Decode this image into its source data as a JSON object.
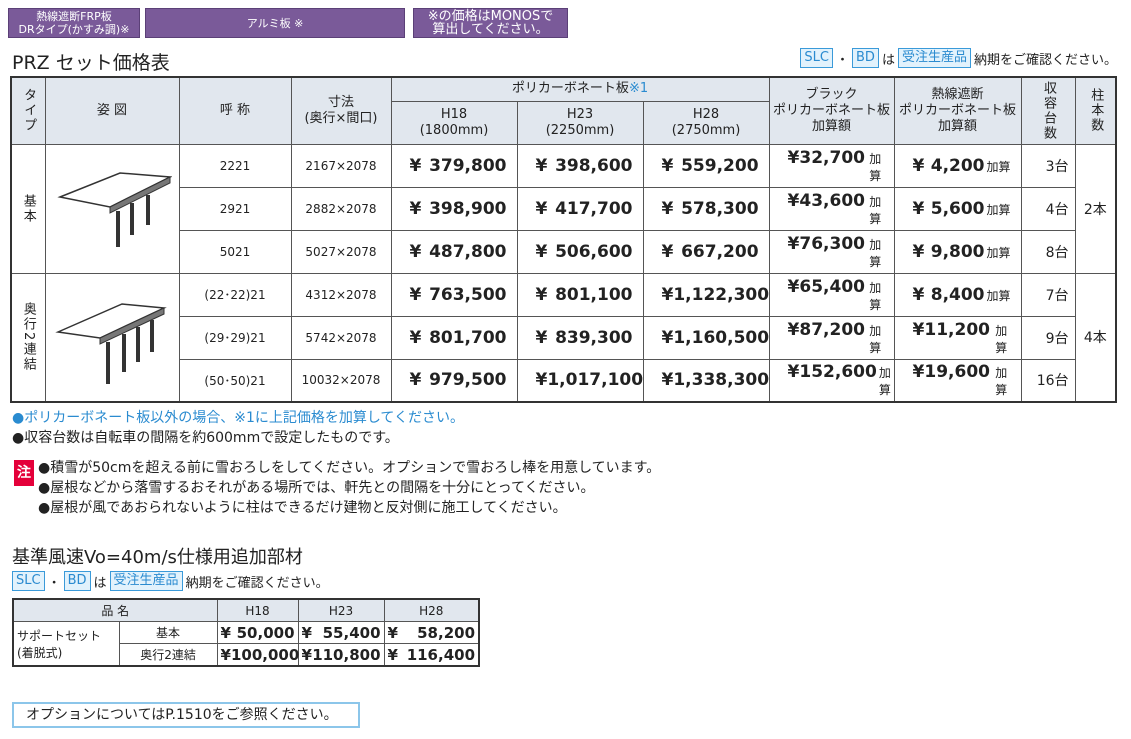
{
  "tabs": [
    [
      "熱線遮断FRP板",
      "DRタイプ(かすみ調)※"
    ],
    [
      "アルミ板 ※"
    ],
    [
      "※の価格はMONOSで",
      "算出してください。"
    ]
  ],
  "title": "PRZ セット価格表",
  "notice": {
    "badge1": "SLC",
    "sep": "・",
    "badge2": "BD",
    "ha": "は",
    "badge3": "受注生産品",
    "text": "納期をご確認ください。"
  },
  "table": {
    "currency": "¥",
    "addon_suffix": "加算",
    "header": {
      "type": "タイプ",
      "figure": "姿 図",
      "name": "呼 称",
      "size": [
        "寸法",
        "(奥行×間口)"
      ],
      "poly": "ポリカーボネート板",
      "poly_mark": "※1",
      "h18": [
        "H18",
        "(1800mm)"
      ],
      "h23": [
        "H23",
        "(2250mm)"
      ],
      "h28": [
        "H28",
        "(2750mm)"
      ],
      "black": [
        "ブラック",
        "ポリカーボネート板",
        "加算額"
      ],
      "heat": [
        "熱線遮断",
        "ポリカーボネート板",
        "加算額"
      ],
      "count": "収容台数",
      "pillars": "柱本数"
    },
    "groups": [
      {
        "type": "基本",
        "pillars": "2本",
        "rows": [
          {
            "name": "2221",
            "size": "2167×2078",
            "h18": "379,800",
            "h23": "398,600",
            "h28": "559,200",
            "black": "32,700",
            "heat": "4,200",
            "count": "3台"
          },
          {
            "name": "2921",
            "size": "2882×2078",
            "h18": "398,900",
            "h23": "417,700",
            "h28": "578,300",
            "black": "43,600",
            "heat": "5,600",
            "count": "4台"
          },
          {
            "name": "5021",
            "size": "5027×2078",
            "h18": "487,800",
            "h23": "506,600",
            "h28": "667,200",
            "black": "76,300",
            "heat": "9,800",
            "count": "8台"
          }
        ]
      },
      {
        "type": "奥行2連結",
        "pillars": "4本",
        "rows": [
          {
            "name": "(22･22)21",
            "size": "4312×2078",
            "h18": "763,500",
            "h23": "801,100",
            "h28": "1,122,300",
            "black": "65,400",
            "heat": "8,400",
            "count": "7台"
          },
          {
            "name": "(29･29)21",
            "size": "5742×2078",
            "h18": "801,700",
            "h23": "839,300",
            "h28": "1,160,500",
            "black": "87,200",
            "heat": "11,200",
            "count": "9台"
          },
          {
            "name": "(50･50)21",
            "size": "10032×2078",
            "h18": "979,500",
            "h23": "1,017,100",
            "h28": "1,338,300",
            "black": "152,600",
            "heat": "19,600",
            "count": "16台"
          }
        ]
      }
    ]
  },
  "notes": [
    "●ポリカーボネート板以外の場合、※1に上記価格を加算してください。",
    "●収容台数は自転車の間隔を約600mmで設定したものです。"
  ],
  "caution": {
    "label": "注",
    "lines": [
      "●積雪が50cmを超える前に雪おろしをしてください。オプションで雪おろし棒を用意しています。",
      "●屋根などから落雪するおそれがある場所では、軒先との間隔を十分にとってください。",
      "●屋根が風であおられないように柱はできるだけ建物と反対側に施工してください。"
    ]
  },
  "section2": {
    "title": "基準風速Vo=40m/s仕様用追加部材",
    "table": {
      "header": [
        "品 名",
        "H18",
        "H23",
        "H28"
      ],
      "product": [
        "サポートセット",
        "(着脱式)"
      ],
      "rows": [
        {
          "type": "基本",
          "h18": "50,000",
          "h23": "55,400",
          "h28": "58,200"
        },
        {
          "type": "奥行2連結",
          "h18": "100,000",
          "h23": "110,800",
          "h28": "116,400"
        }
      ]
    }
  },
  "footer": "オプションについてはP.1510をご参照ください。"
}
